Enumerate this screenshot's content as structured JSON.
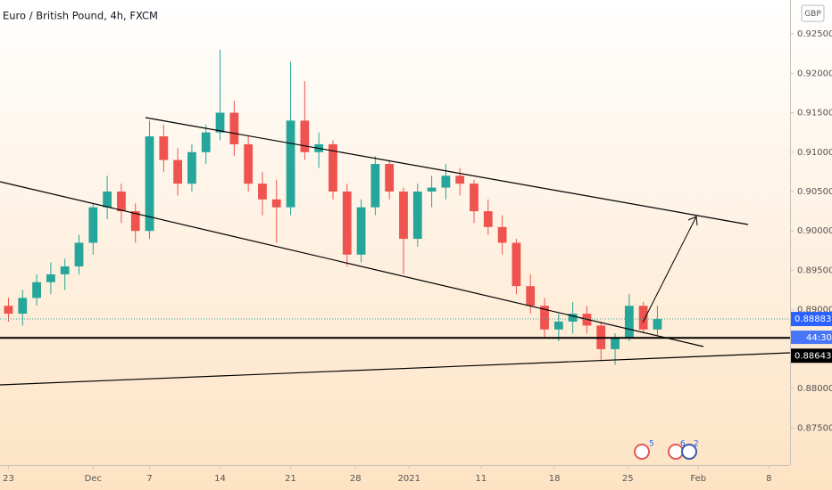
{
  "chart_data": {
    "type": "candlestick",
    "title": "Euro / British Pound, 4h, FXCM",
    "currency": "GBP",
    "up_color": "#26a69a",
    "down_color": "#ef5350",
    "x": [
      0,
      1,
      2,
      3,
      4,
      5,
      6,
      7,
      8,
      9,
      10,
      11,
      12,
      13,
      14,
      15,
      16,
      17,
      18,
      19,
      20,
      21,
      22,
      23,
      24,
      25,
      26,
      27,
      28,
      29,
      30,
      31,
      32,
      33,
      34,
      35,
      36,
      37,
      38,
      39,
      40,
      41,
      42,
      43,
      44,
      45,
      46
    ],
    "ohlc": [
      [
        0.8905,
        0.8915,
        0.8885,
        0.8895
      ],
      [
        0.8895,
        0.8925,
        0.888,
        0.8915
      ],
      [
        0.8915,
        0.8945,
        0.8905,
        0.8935
      ],
      [
        0.8935,
        0.896,
        0.892,
        0.8945
      ],
      [
        0.8945,
        0.8965,
        0.8925,
        0.8955
      ],
      [
        0.8955,
        0.8995,
        0.8945,
        0.8985
      ],
      [
        0.8985,
        0.9035,
        0.897,
        0.903
      ],
      [
        0.903,
        0.907,
        0.9015,
        0.905
      ],
      [
        0.905,
        0.906,
        0.901,
        0.9025
      ],
      [
        0.9025,
        0.9035,
        0.8985,
        0.9
      ],
      [
        0.9,
        0.914,
        0.899,
        0.912
      ],
      [
        0.912,
        0.9135,
        0.9075,
        0.909
      ],
      [
        0.909,
        0.9105,
        0.9045,
        0.906
      ],
      [
        0.906,
        0.911,
        0.905,
        0.91
      ],
      [
        0.91,
        0.9135,
        0.9085,
        0.9125
      ],
      [
        0.9125,
        0.923,
        0.9115,
        0.915
      ],
      [
        0.915,
        0.9165,
        0.9095,
        0.911
      ],
      [
        0.911,
        0.912,
        0.905,
        0.906
      ],
      [
        0.906,
        0.9075,
        0.902,
        0.904
      ],
      [
        0.904,
        0.9065,
        0.8985,
        0.903
      ],
      [
        0.903,
        0.9215,
        0.902,
        0.914
      ],
      [
        0.914,
        0.919,
        0.909,
        0.91
      ],
      [
        0.91,
        0.9125,
        0.908,
        0.911
      ],
      [
        0.911,
        0.9115,
        0.904,
        0.905
      ],
      [
        0.905,
        0.906,
        0.8955,
        0.897
      ],
      [
        0.897,
        0.904,
        0.896,
        0.903
      ],
      [
        0.903,
        0.9095,
        0.902,
        0.9085
      ],
      [
        0.9085,
        0.909,
        0.904,
        0.905
      ],
      [
        0.905,
        0.9055,
        0.8945,
        0.899
      ],
      [
        0.899,
        0.906,
        0.898,
        0.905
      ],
      [
        0.905,
        0.907,
        0.903,
        0.9055
      ],
      [
        0.9055,
        0.9085,
        0.904,
        0.907
      ],
      [
        0.907,
        0.908,
        0.9045,
        0.906
      ],
      [
        0.906,
        0.9065,
        0.901,
        0.9025
      ],
      [
        0.9025,
        0.904,
        0.8995,
        0.9005
      ],
      [
        0.9005,
        0.902,
        0.897,
        0.8985
      ],
      [
        0.8985,
        0.899,
        0.892,
        0.893
      ],
      [
        0.893,
        0.8945,
        0.8895,
        0.8905
      ],
      [
        0.8905,
        0.8915,
        0.8865,
        0.8875
      ],
      [
        0.8875,
        0.8895,
        0.886,
        0.8885
      ],
      [
        0.8885,
        0.891,
        0.887,
        0.8895
      ],
      [
        0.8895,
        0.8905,
        0.887,
        0.888
      ],
      [
        0.888,
        0.8885,
        0.8835,
        0.885
      ],
      [
        0.885,
        0.887,
        0.883,
        0.8865
      ],
      [
        0.8865,
        0.892,
        0.886,
        0.8905
      ],
      [
        0.8905,
        0.891,
        0.887,
        0.8875
      ],
      [
        0.8875,
        0.8905,
        0.8868,
        0.88883
      ]
    ],
    "xlim": [
      -0.6,
      55.4
    ],
    "ylim": [
      0.8703,
      0.9293
    ],
    "xticks": [
      {
        "value": 0,
        "label": "23"
      },
      {
        "value": 6,
        "label": "Dec"
      },
      {
        "value": 10,
        "label": "7"
      },
      {
        "value": 15,
        "label": "14"
      },
      {
        "value": 20,
        "label": "21"
      },
      {
        "value": 24.6,
        "label": "28"
      },
      {
        "value": 28.4,
        "label": "2021"
      },
      {
        "value": 33.5,
        "label": "11"
      },
      {
        "value": 38.7,
        "label": "18"
      },
      {
        "value": 43.9,
        "label": "25"
      },
      {
        "value": 48.9,
        "label": "Feb"
      },
      {
        "value": 53.9,
        "label": "8"
      }
    ],
    "yticks": [
      {
        "value": 0.875,
        "label": "0.87500"
      },
      {
        "value": 0.88,
        "label": "0.88000"
      },
      {
        "value": 0.89,
        "label": "0.89000"
      },
      {
        "value": 0.895,
        "label": "0.89500"
      },
      {
        "value": 0.9,
        "label": "0.90000"
      },
      {
        "value": 0.905,
        "label": "0.90500"
      },
      {
        "value": 0.91,
        "label": "0.91000"
      },
      {
        "value": 0.915,
        "label": "0.91500"
      },
      {
        "value": 0.92,
        "label": "0.92000"
      },
      {
        "value": 0.925,
        "label": "0.92500"
      }
    ],
    "last_price": 0.88883,
    "countdown": "44:30",
    "level": 0.88643,
    "events": [
      "5",
      "6",
      "2"
    ]
  }
}
